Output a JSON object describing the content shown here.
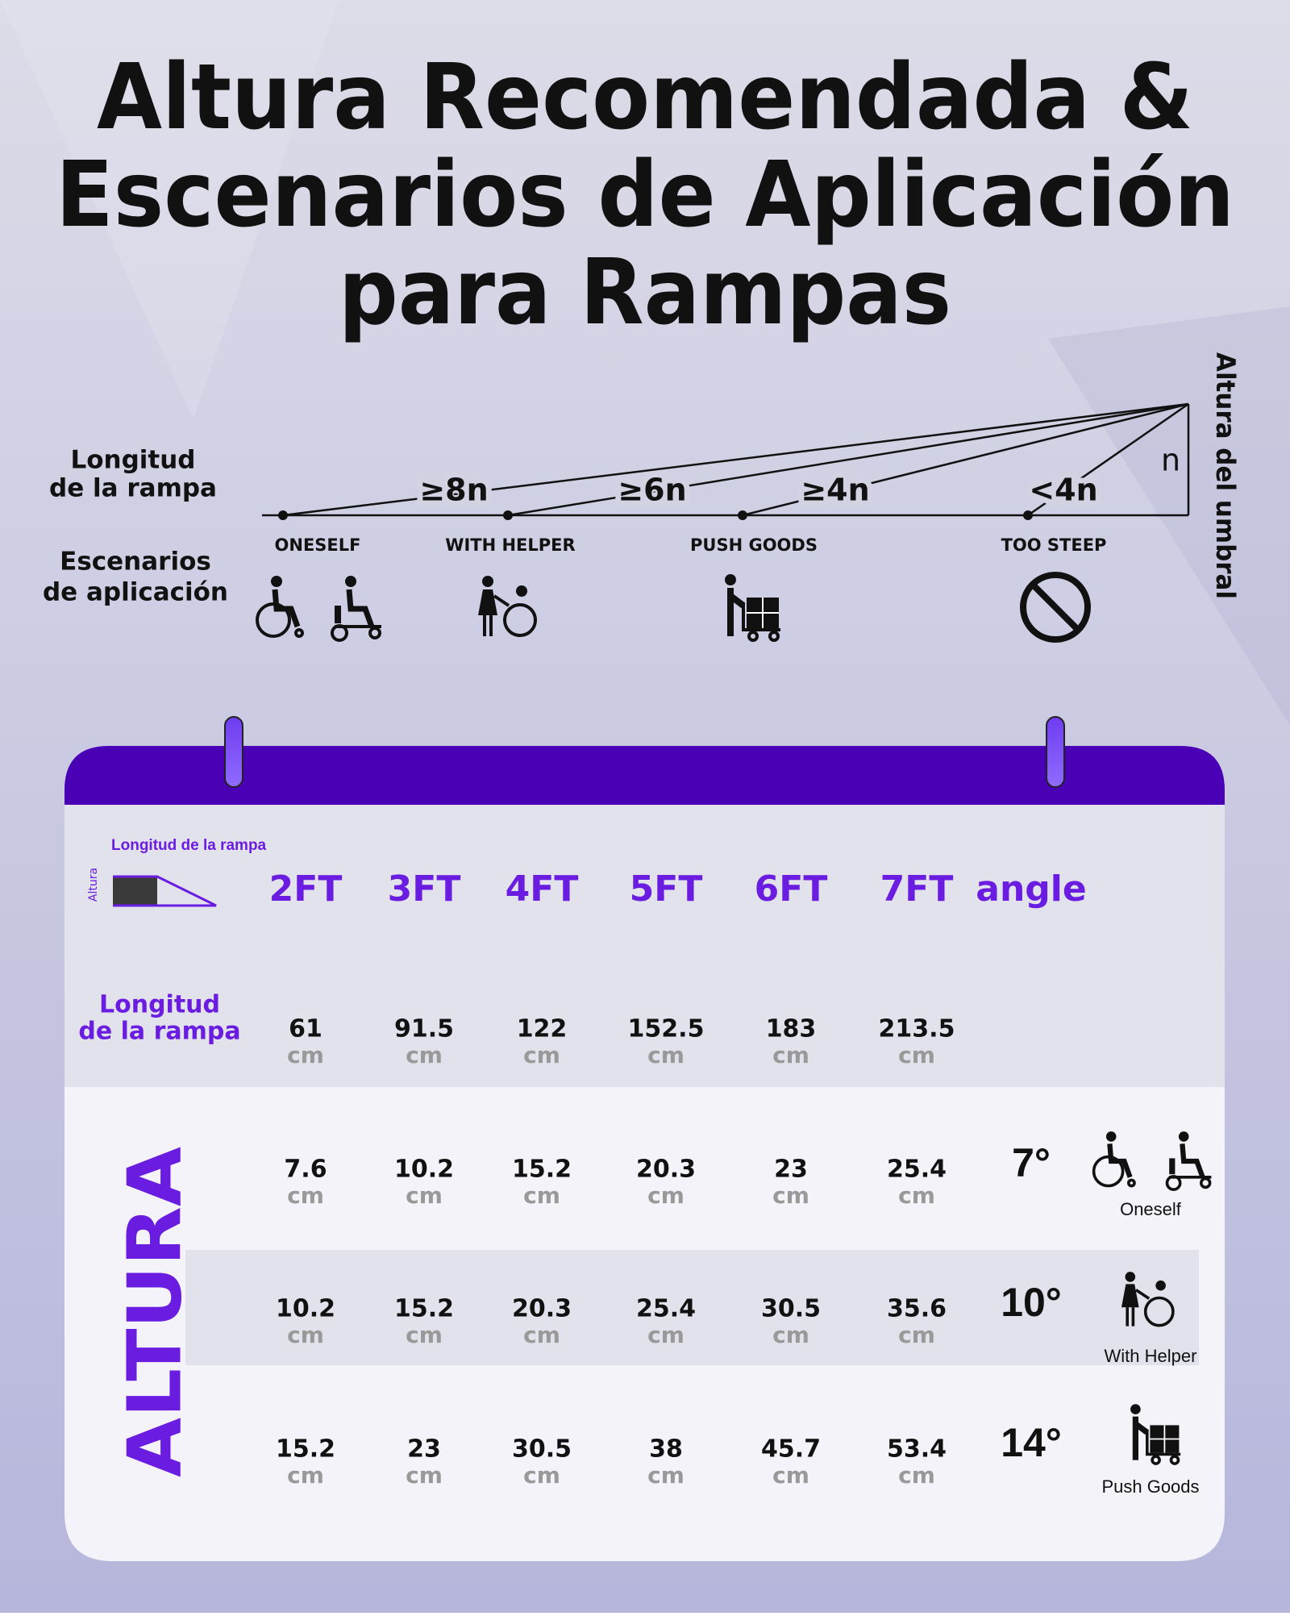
{
  "title": [
    "Altura Recomendada &",
    "Escenarios de Aplicación",
    "para Rampas"
  ],
  "diagram": {
    "length_label": [
      "Longitud",
      "de la rampa"
    ],
    "scenarios_label": [
      "Escenarios",
      "de aplicación"
    ],
    "threshold_label": "Altura del umbral",
    "height_symbol": "n",
    "ratios": [
      "≥8n",
      "≥6n",
      "≥4n",
      "<4n"
    ],
    "scenarios": [
      "ONESELF",
      "WITH HELPER",
      "PUSH GOODS",
      "TOO STEEP"
    ]
  },
  "table": {
    "legend": {
      "length": "Longitud de la rampa",
      "height": "Altura"
    },
    "columns": [
      "2FT",
      "3FT",
      "4FT",
      "5FT",
      "6FT",
      "7FT",
      "angle"
    ],
    "unit": "cm",
    "length_row": {
      "label": [
        "Longitud",
        "de la rampa"
      ],
      "values": [
        61,
        91.5,
        122,
        152.5,
        183,
        213.5
      ]
    },
    "height_label": "ALTURA",
    "rows": [
      {
        "values": [
          7.6,
          10.2,
          15.2,
          20.3,
          23,
          25.4
        ],
        "angle": "7°",
        "scenario": "Oneself"
      },
      {
        "values": [
          10.2,
          15.2,
          20.3,
          25.4,
          30.5,
          35.6
        ],
        "angle": "10°",
        "scenario": "With Helper"
      },
      {
        "values": [
          15.2,
          23,
          30.5,
          38,
          45.7,
          53.4
        ],
        "angle": "14°",
        "scenario": "Push Goods"
      }
    ]
  }
}
